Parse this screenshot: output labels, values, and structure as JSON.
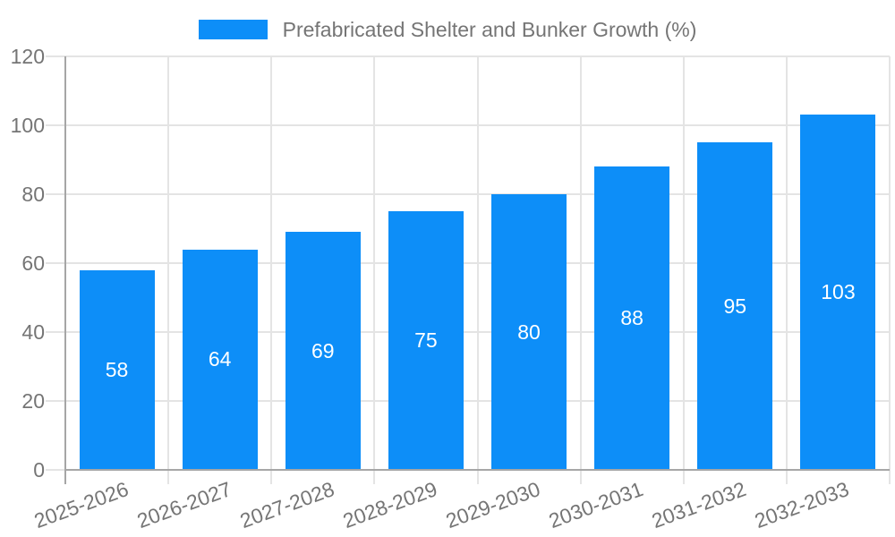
{
  "legend": {
    "label": "Prefabricated Shelter and Bunker Growth (%)"
  },
  "colors": {
    "bar": "#0d8ef8",
    "bar_label": "#ffffff",
    "text": "#757575",
    "grid": "#e4e4e4",
    "axis": "#a6a6a6"
  },
  "chart_data": {
    "type": "bar",
    "title": "",
    "legend_entries": [
      "Prefabricated Shelter and Bunker Growth (%)"
    ],
    "legend_position": "top-center",
    "categories": [
      "2025-2026",
      "2026-2027",
      "2027-2028",
      "2028-2029",
      "2029-2030",
      "2030-2031",
      "2031-2032",
      "2032-2033"
    ],
    "values": [
      58,
      64,
      69,
      75,
      80,
      88,
      95,
      103
    ],
    "bar_value_labels": [
      "58",
      "64",
      "69",
      "75",
      "80",
      "88",
      "95",
      "103"
    ],
    "xlabel": "",
    "ylabel": "",
    "ylim": [
      0,
      120
    ],
    "yticks": [
      0,
      20,
      40,
      60,
      80,
      100,
      120
    ],
    "grid": "horizontal and vertical light gray",
    "x_tick_label_rotation_deg": -20
  }
}
